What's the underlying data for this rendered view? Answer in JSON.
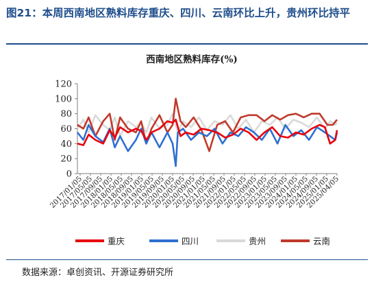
{
  "figure": {
    "title": "图21：本周西南地区熟料库存重庆、四川、云南环比上升，贵州环比持平",
    "source": "数据来源：卓创资讯、开源证券研究所"
  },
  "chart_data": {
    "type": "line",
    "title": "西南地区熟料库存(%)",
    "xlabel": "",
    "ylabel": "",
    "ylim": [
      0,
      120
    ],
    "yticks": [
      0,
      20,
      40,
      60,
      80,
      100,
      120
    ],
    "grid": false,
    "legend_position": "bottom",
    "x_start": "2017-01-05",
    "x_end": "2025-04-05",
    "x_tick_labels": [
      "2017/01/05",
      "2017/05/05",
      "2017/09/05",
      "2018/01/05",
      "2018/05/05",
      "2018/09/05",
      "2019/01/05",
      "2019/05/05",
      "2019/09/05",
      "2020/01/05",
      "2020/05/05",
      "2020/09/05",
      "2021/01/05",
      "2021/05/05",
      "2021/09/05",
      "2022/01/05",
      "2022/05/05",
      "2022/09/05",
      "2023/01/05",
      "2023/05/05",
      "2023/09/05",
      "2024/01/05",
      "2024/05/05",
      "2024/09/05",
      "2025/01/05",
      "2025/04/05"
    ],
    "series": [
      {
        "name": "重庆",
        "color": "#e8000b",
        "x": [
          "2017-01-05",
          "2017-03-15",
          "2017-05-15",
          "2017-08-01",
          "2017-11-01",
          "2018-01-15",
          "2018-03-15",
          "2018-05-15",
          "2018-08-15",
          "2018-11-15",
          "2019-01-15",
          "2019-03-15",
          "2019-05-15",
          "2019-08-15",
          "2019-11-15",
          "2020-01-15",
          "2020-02-20",
          "2020-04-15",
          "2020-06-15",
          "2020-09-15",
          "2020-12-15",
          "2021-03-15",
          "2021-06-15",
          "2021-09-15",
          "2021-12-15",
          "2022-03-15",
          "2022-06-15",
          "2022-09-15",
          "2022-12-15",
          "2023-03-15",
          "2023-06-15",
          "2023-09-15",
          "2023-12-15",
          "2024-03-15",
          "2024-06-15",
          "2024-09-15",
          "2024-11-15",
          "2025-01-15",
          "2025-03-15",
          "2025-04-05"
        ],
        "y": [
          40,
          38,
          52,
          45,
          40,
          58,
          48,
          62,
          55,
          60,
          57,
          45,
          55,
          60,
          70,
          68,
          72,
          50,
          55,
          52,
          60,
          58,
          55,
          48,
          52,
          60,
          55,
          45,
          55,
          62,
          50,
          48,
          55,
          52,
          60,
          65,
          62,
          40,
          45,
          58
        ]
      },
      {
        "name": "四川",
        "color": "#2e6fd0",
        "x": [
          "2017-01-05",
          "2017-03-15",
          "2017-05-15",
          "2017-08-01",
          "2017-11-01",
          "2018-01-15",
          "2018-03-15",
          "2018-05-15",
          "2018-08-15",
          "2018-11-15",
          "2019-01-15",
          "2019-03-15",
          "2019-05-15",
          "2019-08-15",
          "2019-11-15",
          "2020-01-15",
          "2020-02-20",
          "2020-03-15",
          "2020-05-15",
          "2020-08-15",
          "2020-11-15",
          "2021-02-15",
          "2021-05-15",
          "2021-08-15",
          "2021-11-15",
          "2022-02-15",
          "2022-05-15",
          "2022-08-15",
          "2022-11-15",
          "2023-02-15",
          "2023-05-15",
          "2023-08-15",
          "2023-11-15",
          "2024-02-15",
          "2024-05-15",
          "2024-08-15",
          "2024-11-15",
          "2025-01-15",
          "2025-03-15",
          "2025-04-05"
        ],
        "y": [
          55,
          45,
          65,
          50,
          42,
          60,
          35,
          50,
          30,
          45,
          60,
          40,
          55,
          35,
          55,
          40,
          10,
          55,
          60,
          45,
          55,
          50,
          60,
          40,
          55,
          50,
          62,
          55,
          45,
          60,
          40,
          65,
          50,
          58,
          45,
          62,
          55,
          50,
          45,
          55
        ]
      },
      {
        "name": "贵州",
        "color": "#d9d9d9",
        "x": [
          "2017-01-05",
          "2017-03-15",
          "2017-05-15",
          "2017-08-01",
          "2017-11-01",
          "2018-01-15",
          "2018-03-15",
          "2018-05-15",
          "2018-08-15",
          "2018-11-15",
          "2019-01-15",
          "2019-03-15",
          "2019-05-15",
          "2019-08-15",
          "2019-11-15",
          "2020-01-15",
          "2020-03-15",
          "2020-05-15",
          "2020-08-15",
          "2020-11-15",
          "2021-02-15",
          "2021-05-15",
          "2021-08-15",
          "2021-11-15",
          "2022-02-15",
          "2022-05-15",
          "2022-08-15",
          "2022-11-15",
          "2023-02-15",
          "2023-05-15",
          "2023-08-15",
          "2023-11-15",
          "2024-02-15",
          "2024-05-15",
          "2024-08-15",
          "2024-11-15",
          "2025-01-15",
          "2025-03-15",
          "2025-04-05"
        ],
        "y": [
          60,
          72,
          55,
          78,
          65,
          58,
          75,
          50,
          70,
          62,
          68,
          55,
          75,
          60,
          65,
          80,
          55,
          70,
          62,
          75,
          58,
          70,
          65,
          78,
          60,
          72,
          55,
          70,
          65,
          75,
          60,
          72,
          68,
          62,
          75,
          60,
          70,
          65,
          68
        ]
      },
      {
        "name": "云南",
        "color": "#c0392b",
        "x": [
          "2017-01-05",
          "2017-03-15",
          "2017-05-15",
          "2017-08-01",
          "2017-11-01",
          "2018-01-15",
          "2018-03-15",
          "2018-05-15",
          "2018-08-15",
          "2018-11-15",
          "2019-01-15",
          "2019-03-15",
          "2019-05-15",
          "2019-08-15",
          "2019-11-15",
          "2020-01-15",
          "2020-02-20",
          "2020-04-15",
          "2020-06-15",
          "2020-09-15",
          "2020-12-15",
          "2021-03-15",
          "2021-06-15",
          "2021-09-15",
          "2021-12-15",
          "2022-03-15",
          "2022-06-15",
          "2022-09-15",
          "2022-12-15",
          "2023-03-15",
          "2023-06-15",
          "2023-09-15",
          "2023-12-15",
          "2024-03-15",
          "2024-06-15",
          "2024-09-15",
          "2024-12-15",
          "2025-02-15",
          "2025-04-05"
        ],
        "y": [
          65,
          60,
          75,
          50,
          70,
          80,
          45,
          75,
          60,
          55,
          70,
          40,
          60,
          78,
          55,
          65,
          100,
          70,
          62,
          75,
          58,
          30,
          65,
          70,
          55,
          75,
          78,
          78,
          70,
          78,
          72,
          78,
          80,
          75,
          80,
          80,
          65,
          65,
          72
        ]
      }
    ]
  }
}
